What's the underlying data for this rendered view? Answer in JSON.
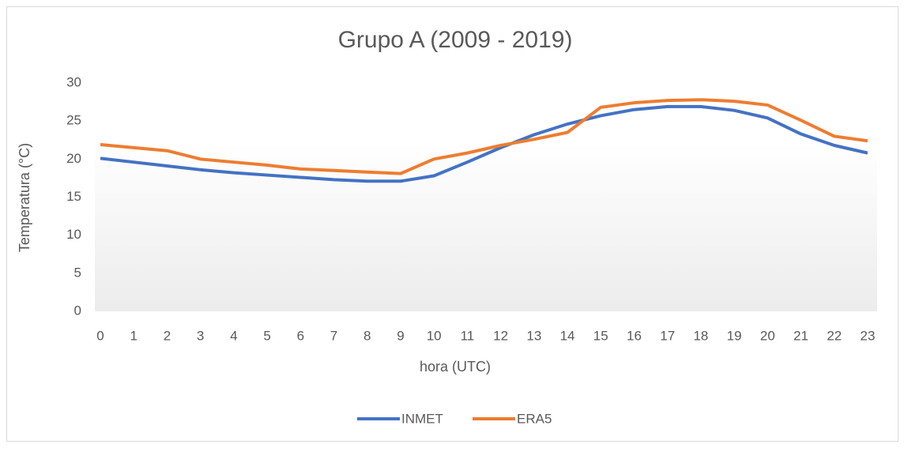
{
  "chart_data": {
    "type": "line",
    "title": "Grupo A (2009 - 2019)",
    "x_label": "hora (UTC)",
    "y_label": "Temperatura (°C)",
    "x": [
      0,
      1,
      2,
      3,
      4,
      5,
      6,
      7,
      8,
      9,
      10,
      11,
      12,
      13,
      14,
      15,
      16,
      17,
      18,
      19,
      20,
      21,
      22,
      23
    ],
    "xlim": [
      0,
      23
    ],
    "ylim": [
      0,
      30
    ],
    "yticks": [
      0,
      5,
      10,
      15,
      20,
      25,
      30
    ],
    "grid": false,
    "legend": "bottom",
    "series": [
      {
        "name": "INMET",
        "color": "#4472c4",
        "values": [
          20.1,
          19.6,
          19.1,
          18.6,
          18.2,
          17.9,
          17.6,
          17.3,
          17.1,
          17.1,
          17.8,
          19.6,
          21.5,
          23.2,
          24.6,
          25.7,
          26.5,
          26.9,
          26.9,
          26.4,
          25.4,
          23.3,
          21.8,
          20.8
        ]
      },
      {
        "name": "ERA5",
        "color": "#ed7d31",
        "values": [
          21.9,
          21.5,
          21.1,
          20.0,
          19.6,
          19.2,
          18.7,
          18.5,
          18.3,
          18.1,
          20.0,
          20.8,
          21.8,
          22.6,
          23.5,
          26.8,
          27.4,
          27.7,
          27.8,
          27.6,
          27.1,
          25.1,
          23.0,
          22.4
        ]
      }
    ]
  }
}
